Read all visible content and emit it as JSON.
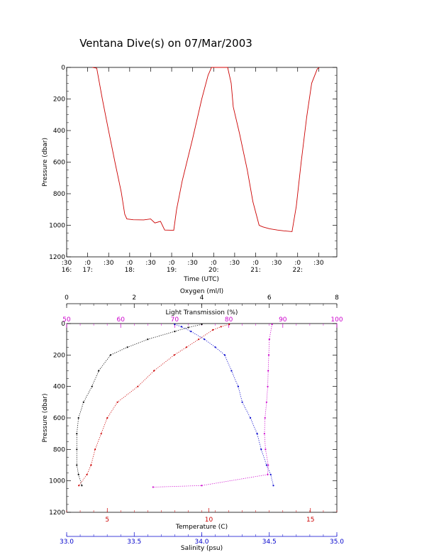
{
  "chart_data": [
    {
      "type": "line",
      "title": "Ventana Dive(s) on 07/Mar/2003",
      "xlabel": "Time (UTC)",
      "ylabel": "Pressure (dbar)",
      "xlim": [
        "16:30",
        "22:56"
      ],
      "ylim": [
        1200,
        0
      ],
      "y_ticks": [
        "0",
        "200",
        "400",
        "600",
        "800",
        "1000",
        "1200"
      ],
      "x_ticks": [
        {
          "time": "16:30",
          "top": ":30",
          "bottom": "16:"
        },
        {
          "time": "17:00",
          "top": ":0",
          "bottom": "17:"
        },
        {
          "time": "17:30",
          "top": ":30",
          "bottom": ""
        },
        {
          "time": "18:00",
          "top": ":0",
          "bottom": "18:"
        },
        {
          "time": "18:30",
          "top": ":30",
          "bottom": ""
        },
        {
          "time": "19:00",
          "top": ":0",
          "bottom": "19:"
        },
        {
          "time": "19:30",
          "top": ":30",
          "bottom": ""
        },
        {
          "time": "20:00",
          "top": ":0",
          "bottom": "20:"
        },
        {
          "time": "20:30",
          "top": ":30",
          "bottom": ""
        },
        {
          "time": "21:00",
          "top": ":0",
          "bottom": "21:"
        },
        {
          "time": "21:30",
          "top": ":30",
          "bottom": ""
        },
        {
          "time": "22:00",
          "top": ":0",
          "bottom": "22:"
        },
        {
          "time": "22:30",
          "top": ":30",
          "bottom": ""
        }
      ],
      "series": [
        {
          "color": "#cc0000",
          "points": [
            [
              "17:07",
              0
            ],
            [
              "17:13",
              5
            ],
            [
              "17:21",
              200
            ],
            [
              "17:29",
              380
            ],
            [
              "17:39",
              600
            ],
            [
              "17:48",
              790
            ],
            [
              "17:53",
              930
            ],
            [
              "17:56",
              960
            ],
            [
              "18:05",
              965
            ],
            [
              "18:20",
              966
            ],
            [
              "18:30",
              960
            ],
            [
              "18:36",
              985
            ],
            [
              "18:44",
              975
            ],
            [
              "18:50",
              1030
            ],
            [
              "19:03",
              1032
            ],
            [
              "19:07",
              900
            ],
            [
              "19:15",
              720
            ],
            [
              "19:30",
              450
            ],
            [
              "19:43",
              200
            ],
            [
              "19:52",
              50
            ],
            [
              "19:57",
              0
            ],
            [
              "20:20",
              0
            ],
            [
              "20:25",
              100
            ],
            [
              "20:28",
              250
            ],
            [
              "20:37",
              420
            ],
            [
              "20:48",
              650
            ],
            [
              "20:56",
              850
            ],
            [
              "21:05",
              1000
            ],
            [
              "21:10",
              1010
            ],
            [
              "21:20",
              1022
            ],
            [
              "21:31",
              1030
            ],
            [
              "21:40",
              1035
            ],
            [
              "21:52",
              1040
            ],
            [
              "21:58",
              880
            ],
            [
              "22:05",
              600
            ],
            [
              "22:13",
              310
            ],
            [
              "22:20",
              100
            ],
            [
              "22:28",
              10
            ],
            [
              "22:31",
              0
            ]
          ]
        }
      ]
    },
    {
      "type": "scatter",
      "ylabel": "Pressure (dbar)",
      "ylim": [
        1200,
        0
      ],
      "y_ticks": [
        "0",
        "200",
        "400",
        "600",
        "800",
        "1000",
        "1200"
      ],
      "axes": {
        "oxygen": {
          "label": "Oxygen (ml/l)",
          "range": [
            0,
            8
          ],
          "ticks": [
            "0",
            "2",
            "4",
            "6",
            "8"
          ],
          "position": "top",
          "color": "#000000"
        },
        "light_transmission": {
          "label": "Light Transmission (%)",
          "range": [
            50,
            100
          ],
          "ticks": [
            "50",
            "60",
            "70",
            "80",
            "90",
            "100"
          ],
          "position": "top",
          "color": "#cc00cc"
        },
        "temperature": {
          "label": "Temperature (C)",
          "range": [
            3,
            16.3
          ],
          "ticks": [
            "5",
            "10",
            "15"
          ],
          "position": "bottom",
          "color": "#cc0000"
        },
        "salinity": {
          "label": "Salinity (psu)",
          "range": [
            33.0,
            35.0
          ],
          "ticks": [
            "33.0",
            "33.5",
            "34.0",
            "34.5",
            "35.0"
          ],
          "position": "bottom",
          "color": "#0000cc"
        }
      },
      "series": [
        {
          "axis": "oxygen",
          "color": "#000000",
          "points": [
            [
              4.0,
              5
            ],
            [
              3.6,
              25
            ],
            [
              3.2,
              50
            ],
            [
              2.4,
              100
            ],
            [
              1.8,
              150
            ],
            [
              1.3,
              200
            ],
            [
              0.95,
              300
            ],
            [
              0.75,
              400
            ],
            [
              0.5,
              500
            ],
            [
              0.35,
              600
            ],
            [
              0.3,
              700
            ],
            [
              0.3,
              800
            ],
            [
              0.3,
              900
            ],
            [
              0.35,
              960
            ],
            [
              0.45,
              1030
            ]
          ]
        },
        {
          "axis": "temperature",
          "color": "#cc0000",
          "points": [
            [
              11.0,
              5
            ],
            [
              10.6,
              20
            ],
            [
              10.2,
              40
            ],
            [
              9.5,
              100
            ],
            [
              8.9,
              150
            ],
            [
              8.3,
              200
            ],
            [
              7.3,
              300
            ],
            [
              6.5,
              400
            ],
            [
              5.5,
              500
            ],
            [
              5.0,
              600
            ],
            [
              4.7,
              700
            ],
            [
              4.4,
              800
            ],
            [
              4.2,
              900
            ],
            [
              4.0,
              960
            ],
            [
              3.6,
              1030
            ]
          ]
        },
        {
          "axis": "salinity",
          "color": "#0000cc",
          "points": [
            [
              33.8,
              5
            ],
            [
              33.85,
              20
            ],
            [
              33.92,
              50
            ],
            [
              34.02,
              100
            ],
            [
              34.1,
              150
            ],
            [
              34.17,
              200
            ],
            [
              34.22,
              300
            ],
            [
              34.27,
              400
            ],
            [
              34.3,
              500
            ],
            [
              34.36,
              600
            ],
            [
              34.41,
              700
            ],
            [
              34.44,
              800
            ],
            [
              34.48,
              900
            ],
            [
              34.51,
              960
            ],
            [
              34.53,
              1030
            ]
          ]
        },
        {
          "axis": "light_transmission",
          "color": "#cc00cc",
          "points": [
            [
              88.0,
              5
            ],
            [
              87.5,
              100
            ],
            [
              87.4,
              200
            ],
            [
              87.3,
              300
            ],
            [
              87.2,
              400
            ],
            [
              87.0,
              500
            ],
            [
              86.7,
              600
            ],
            [
              86.6,
              700
            ],
            [
              86.8,
              800
            ],
            [
              87.3,
              900
            ],
            [
              87.2,
              960
            ],
            [
              75.0,
              1030
            ],
            [
              66.0,
              1040
            ]
          ]
        }
      ]
    }
  ]
}
